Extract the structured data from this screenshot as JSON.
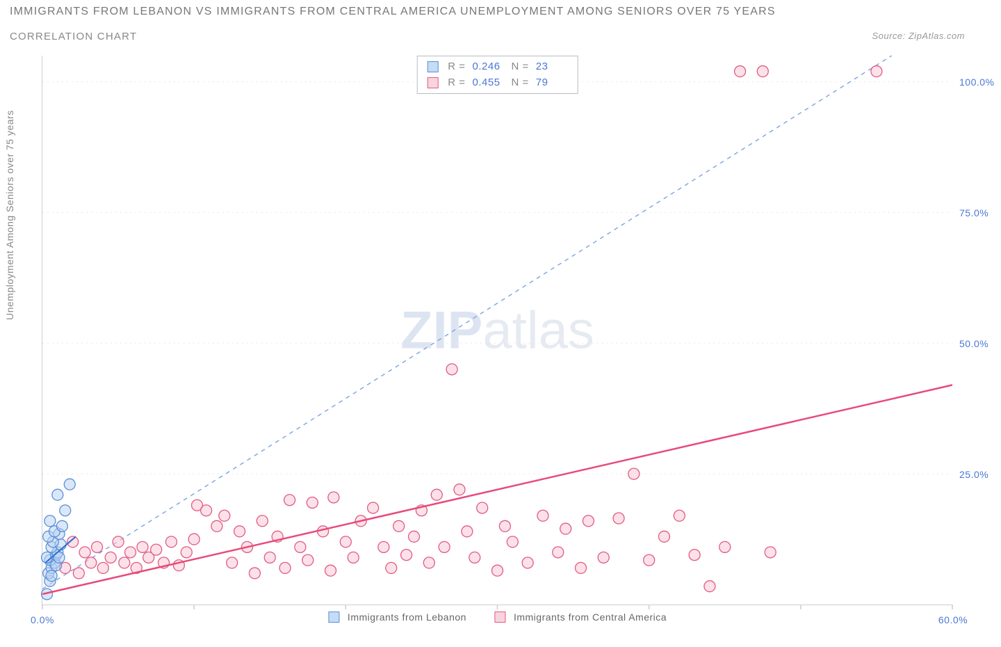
{
  "title": "IMMIGRANTS FROM LEBANON VS IMMIGRANTS FROM CENTRAL AMERICA UNEMPLOYMENT AMONG SENIORS OVER 75 YEARS",
  "subtitle": "CORRELATION CHART",
  "source": "Source: ZipAtlas.com",
  "y_axis_label": "Unemployment Among Seniors over 75 years",
  "watermark_bold": "ZIP",
  "watermark_light": "atlas",
  "chart": {
    "type": "scatter",
    "background_color": "#ffffff",
    "axis_color": "#c9cdd4",
    "grid_color": "#e6e8ec",
    "grid_dash": "2 5",
    "tick_color": "#c9cdd4",
    "tick_label_color": "#4a77d4",
    "xlim": [
      0,
      60
    ],
    "ylim": [
      0,
      105
    ],
    "x_ticks": [
      0,
      10,
      20,
      30,
      40,
      50,
      60
    ],
    "x_tick_labels": {
      "0": "0.0%",
      "60": "60.0%"
    },
    "y_ticks": [
      25,
      50,
      75,
      100
    ],
    "y_tick_labels": {
      "25": "25.0%",
      "50": "50.0%",
      "75": "75.0%",
      "100": "100.0%"
    },
    "series": [
      {
        "name": "Immigrants from Lebanon",
        "marker_fill": "#b9d3f2",
        "marker_stroke": "#5a8fd6",
        "marker_opacity": 0.55,
        "marker_radius": 8,
        "swatch_fill": "#c6dbf5",
        "swatch_border": "#5a8fd6",
        "regression": {
          "stroke": "#2f6fd0",
          "width": 2,
          "dash": "none",
          "x1": 0.2,
          "y1": 8.0,
          "x2": 2.2,
          "y2": 13.0
        },
        "stats": {
          "R": "0.246",
          "N": "23"
        },
        "points": [
          {
            "x": 0.3,
            "y": 2.0
          },
          {
            "x": 0.5,
            "y": 4.5
          },
          {
            "x": 0.4,
            "y": 6.0
          },
          {
            "x": 0.6,
            "y": 7.0
          },
          {
            "x": 0.8,
            "y": 8.0
          },
          {
            "x": 0.5,
            "y": 8.5
          },
          {
            "x": 0.3,
            "y": 9.0
          },
          {
            "x": 0.9,
            "y": 9.5
          },
          {
            "x": 1.0,
            "y": 10.0
          },
          {
            "x": 0.6,
            "y": 11.0
          },
          {
            "x": 1.2,
            "y": 11.5
          },
          {
            "x": 0.7,
            "y": 12.0
          },
          {
            "x": 0.4,
            "y": 13.0
          },
          {
            "x": 1.1,
            "y": 13.5
          },
          {
            "x": 0.8,
            "y": 14.0
          },
          {
            "x": 1.3,
            "y": 15.0
          },
          {
            "x": 0.5,
            "y": 16.0
          },
          {
            "x": 1.5,
            "y": 18.0
          },
          {
            "x": 1.0,
            "y": 21.0
          },
          {
            "x": 1.8,
            "y": 23.0
          },
          {
            "x": 0.6,
            "y": 5.5
          },
          {
            "x": 0.9,
            "y": 7.5
          },
          {
            "x": 1.1,
            "y": 9.0
          }
        ]
      },
      {
        "name": "Immigrants from Central America",
        "marker_fill": "#f9c9d6",
        "marker_stroke": "#e05a86",
        "marker_opacity": 0.55,
        "marker_radius": 8,
        "swatch_fill": "#f8d4de",
        "swatch_border": "#e05a86",
        "regression": {
          "stroke": "#e84a7a",
          "width": 2.5,
          "dash": "none",
          "x1": 0.0,
          "y1": 2.0,
          "x2": 60.0,
          "y2": 42.0
        },
        "diagonal": {
          "stroke": "#7aa3e0",
          "width": 1.4,
          "dash": "6 6",
          "x1": 0.0,
          "y1": 3.0,
          "x2": 56.0,
          "y2": 105.0
        },
        "stats": {
          "R": "0.455",
          "N": "79"
        },
        "points": [
          {
            "x": 1.5,
            "y": 7.0
          },
          {
            "x": 2.0,
            "y": 12.0
          },
          {
            "x": 2.4,
            "y": 6.0
          },
          {
            "x": 2.8,
            "y": 10.0
          },
          {
            "x": 3.2,
            "y": 8.0
          },
          {
            "x": 3.6,
            "y": 11.0
          },
          {
            "x": 4.0,
            "y": 7.0
          },
          {
            "x": 4.5,
            "y": 9.0
          },
          {
            "x": 5.0,
            "y": 12.0
          },
          {
            "x": 5.4,
            "y": 8.0
          },
          {
            "x": 5.8,
            "y": 10.0
          },
          {
            "x": 6.2,
            "y": 7.0
          },
          {
            "x": 6.6,
            "y": 11.0
          },
          {
            "x": 7.0,
            "y": 9.0
          },
          {
            "x": 7.5,
            "y": 10.5
          },
          {
            "x": 8.0,
            "y": 8.0
          },
          {
            "x": 8.5,
            "y": 12.0
          },
          {
            "x": 9.0,
            "y": 7.5
          },
          {
            "x": 9.5,
            "y": 10.0
          },
          {
            "x": 10.0,
            "y": 12.5
          },
          {
            "x": 10.2,
            "y": 19.0
          },
          {
            "x": 10.8,
            "y": 18.0
          },
          {
            "x": 11.5,
            "y": 15.0
          },
          {
            "x": 12.0,
            "y": 17.0
          },
          {
            "x": 12.5,
            "y": 8.0
          },
          {
            "x": 13.0,
            "y": 14.0
          },
          {
            "x": 13.5,
            "y": 11.0
          },
          {
            "x": 14.0,
            "y": 6.0
          },
          {
            "x": 14.5,
            "y": 16.0
          },
          {
            "x": 15.0,
            "y": 9.0
          },
          {
            "x": 15.5,
            "y": 13.0
          },
          {
            "x": 16.0,
            "y": 7.0
          },
          {
            "x": 16.3,
            "y": 20.0
          },
          {
            "x": 17.0,
            "y": 11.0
          },
          {
            "x": 17.5,
            "y": 8.5
          },
          {
            "x": 17.8,
            "y": 19.5
          },
          {
            "x": 18.5,
            "y": 14.0
          },
          {
            "x": 19.0,
            "y": 6.5
          },
          {
            "x": 19.2,
            "y": 20.5
          },
          {
            "x": 20.0,
            "y": 12.0
          },
          {
            "x": 20.5,
            "y": 9.0
          },
          {
            "x": 21.0,
            "y": 16.0
          },
          {
            "x": 21.8,
            "y": 18.5
          },
          {
            "x": 22.5,
            "y": 11.0
          },
          {
            "x": 23.0,
            "y": 7.0
          },
          {
            "x": 23.5,
            "y": 15.0
          },
          {
            "x": 24.0,
            "y": 9.5
          },
          {
            "x": 24.5,
            "y": 13.0
          },
          {
            "x": 25.0,
            "y": 18.0
          },
          {
            "x": 25.5,
            "y": 8.0
          },
          {
            "x": 26.0,
            "y": 21.0
          },
          {
            "x": 26.5,
            "y": 11.0
          },
          {
            "x": 27.0,
            "y": 45.0
          },
          {
            "x": 27.5,
            "y": 22.0
          },
          {
            "x": 28.0,
            "y": 14.0
          },
          {
            "x": 28.5,
            "y": 9.0
          },
          {
            "x": 29.0,
            "y": 18.5
          },
          {
            "x": 30.0,
            "y": 6.5
          },
          {
            "x": 30.5,
            "y": 15.0
          },
          {
            "x": 31.0,
            "y": 12.0
          },
          {
            "x": 32.0,
            "y": 8.0
          },
          {
            "x": 33.0,
            "y": 17.0
          },
          {
            "x": 34.0,
            "y": 10.0
          },
          {
            "x": 34.5,
            "y": 14.5
          },
          {
            "x": 35.5,
            "y": 7.0
          },
          {
            "x": 36.0,
            "y": 16.0
          },
          {
            "x": 37.0,
            "y": 9.0
          },
          {
            "x": 38.0,
            "y": 16.5
          },
          {
            "x": 39.0,
            "y": 25.0
          },
          {
            "x": 40.0,
            "y": 8.5
          },
          {
            "x": 41.0,
            "y": 13.0
          },
          {
            "x": 42.0,
            "y": 17.0
          },
          {
            "x": 43.0,
            "y": 9.5
          },
          {
            "x": 44.0,
            "y": 3.5
          },
          {
            "x": 45.0,
            "y": 11.0
          },
          {
            "x": 46.0,
            "y": 102.0
          },
          {
            "x": 47.5,
            "y": 102.0
          },
          {
            "x": 48.0,
            "y": 10.0
          },
          {
            "x": 55.0,
            "y": 102.0
          }
        ]
      }
    ]
  },
  "bottom_legend": [
    {
      "label": "Immigrants from Lebanon",
      "fill": "#c6dbf5",
      "border": "#5a8fd6"
    },
    {
      "label": "Immigrants from Central America",
      "fill": "#f8d4de",
      "border": "#e05a86"
    }
  ]
}
